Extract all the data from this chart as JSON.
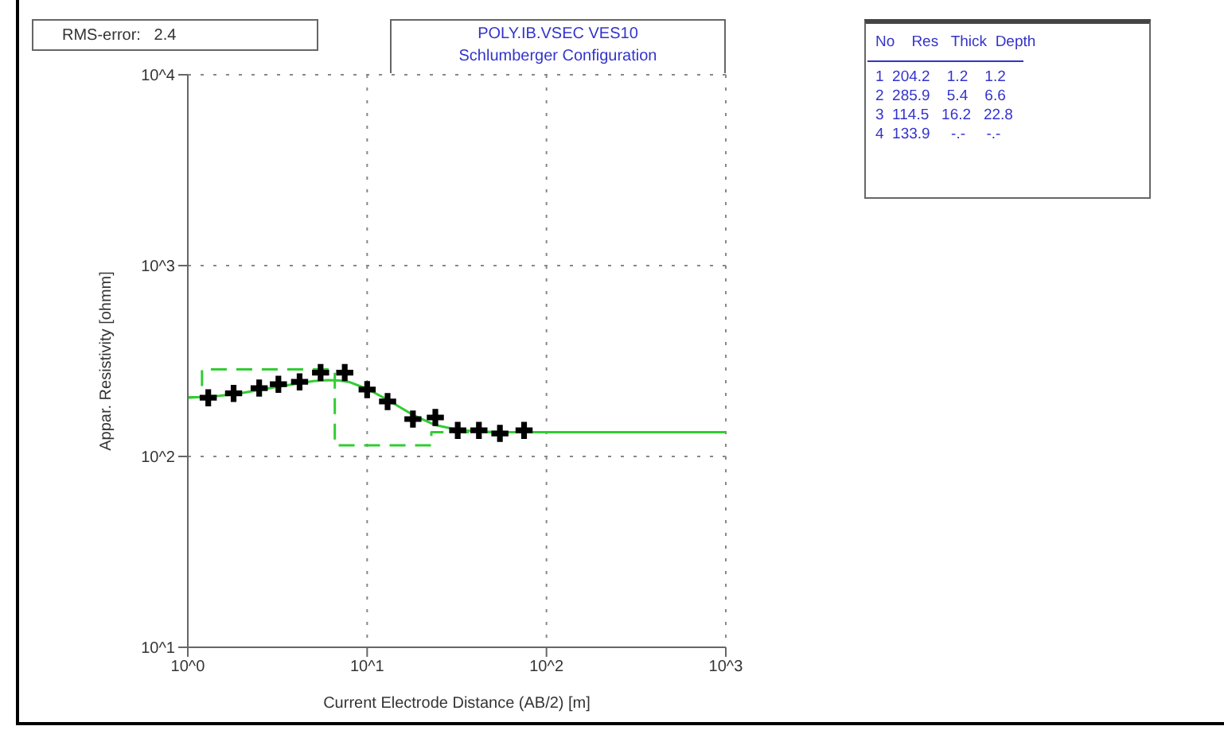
{
  "chart_data": {
    "type": "line",
    "title": "POLY.IB.VSEC VES10",
    "subtitle": "Schlumberger Configuration",
    "xlabel": "Current Electrode Distance (AB/2) [m]",
    "ylabel": "Appar. Resistivity [ohmm]",
    "annotations": [
      "RMS-error:   2.4",
      "No    Res   Thick  Depth",
      "1  204.2    1.2    1.2",
      "2  285.9    5.4    6.6",
      "3  114.5   16.2   22.8",
      "4  133.9     -.-     -.-"
    ],
    "log": "xy",
    "grid": true,
    "xlim": [
      1,
      1000
    ],
    "xticks": [
      {
        "value": 1,
        "label": "10^0"
      },
      {
        "value": 10,
        "label": "10^1"
      },
      {
        "value": 100,
        "label": "10^2"
      },
      {
        "value": 1000,
        "label": "10^3"
      }
    ],
    "ylim": [
      10,
      10000
    ],
    "yticks": [
      {
        "value": 10,
        "label": "10^1"
      },
      {
        "value": 100,
        "label": "10^2"
      },
      {
        "value": 1000,
        "label": "10^3"
      },
      {
        "value": 10000,
        "label": "10^4"
      }
    ],
    "series": [
      {
        "color": "#33cc33",
        "line_style": "dashed",
        "marker": "none",
        "x": [
          1,
          1.2,
          1.2,
          6.6,
          6.6,
          22.8,
          22.8,
          1000
        ],
        "values": [
          204.2,
          204.2,
          285.9,
          285.9,
          114.5,
          114.5,
          133.9,
          133.9
        ]
      },
      {
        "color": "#33cc33",
        "line_style": "solid",
        "marker": "none",
        "x": [
          1,
          1.5,
          2,
          3,
          4,
          5,
          6,
          7,
          8,
          10,
          13,
          18,
          24,
          32,
          42,
          60,
          100,
          1000
        ],
        "values": [
          203,
          208,
          215,
          230,
          240,
          248,
          251,
          250,
          245,
          226,
          198,
          165,
          146,
          138,
          135,
          134,
          134,
          133.9
        ]
      },
      {
        "type": "scatter",
        "color": "#000000",
        "marker": "cross",
        "x": [
          1.3,
          1.8,
          2.5,
          3.2,
          4.2,
          5.5,
          7.5,
          10,
          13,
          18,
          24,
          32,
          42,
          55,
          75
        ],
        "values": [
          203,
          214,
          228,
          239,
          246,
          275,
          275,
          224,
          194,
          157,
          160,
          137,
          137,
          132,
          137
        ]
      }
    ]
  }
}
